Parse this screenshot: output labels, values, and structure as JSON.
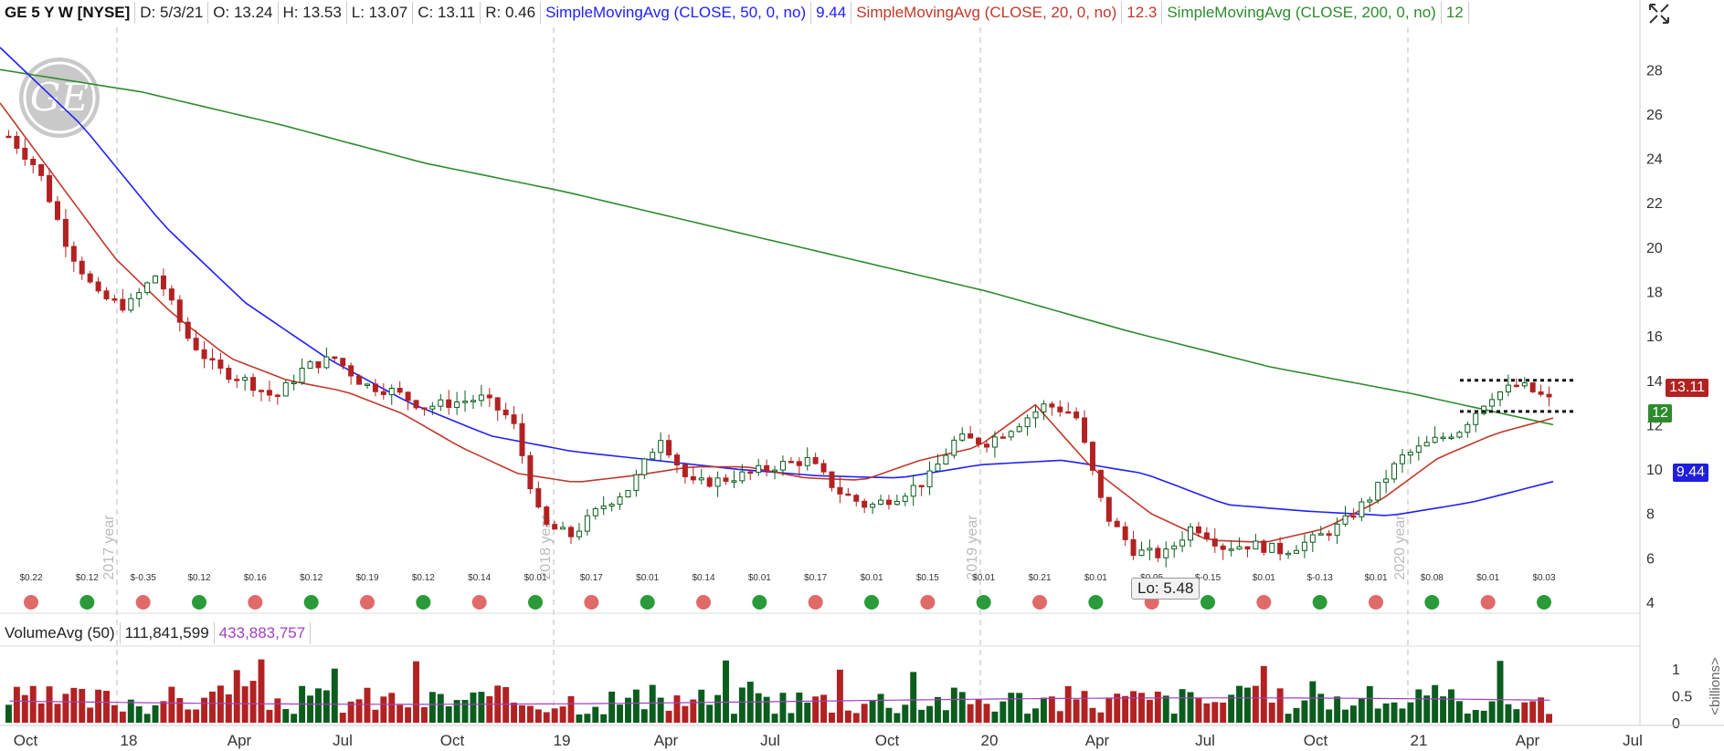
{
  "header": {
    "symbol": "GE 5 Y W [NYSE]",
    "date": "D: 5/3/21",
    "open": "O: 13.24",
    "high": "H: 13.53",
    "low": "L: 13.07",
    "close": "C: 13.11",
    "range": "R: 0.46",
    "sma50_label": "SimpleMovingAvg (CLOSE, 50, 0, no)",
    "sma50_value": "9.44",
    "sma20_label": "SimpleMovingAvg (CLOSE, 20, 0, no)",
    "sma20_value": "12.3",
    "sma200_label": "SimpleMovingAvg (CLOSE, 200, 0, no)",
    "sma200_value": "12"
  },
  "volume_header": {
    "label": "VolumeAvg (50)",
    "avg": "111,841,599",
    "vol": "433,883,757"
  },
  "tags": {
    "last_price": "13.11",
    "sma200": "12",
    "sma50": "9.44"
  },
  "low_callout": "Lo: 5.48",
  "colors": {
    "up": "#0b5d1e",
    "down": "#b22222",
    "sma50": "#2020ff",
    "sma20": "#c0392b",
    "sma200": "#2e8b2e",
    "volume_avg": "#a040c0",
    "last_price_tag": "#b22222",
    "sma200_tag": "#2e8b2e",
    "sma50_tag": "#1f1fdd"
  },
  "icons": [
    "ge-logo",
    "expand-icon",
    "dividend-icon",
    "earnings-icon"
  ],
  "chart_data": {
    "type": "candlestick",
    "y_range": [
      4,
      29
    ],
    "y_ticks": [
      4,
      6,
      8,
      10,
      12,
      14,
      16,
      18,
      20,
      22,
      24,
      26,
      28
    ],
    "x_ticks": [
      "Oct",
      "18",
      "Apr",
      "Jul",
      "Oct",
      "19",
      "Apr",
      "Jul",
      "Oct",
      "20",
      "Apr",
      "Jul",
      "Oct",
      "21",
      "Apr",
      "Jul"
    ],
    "year_labels": [
      "2017 year",
      "2018 year",
      "2019 year",
      "2020 year"
    ],
    "volume_ticks": [
      "1",
      "0.5",
      "0"
    ],
    "volume_unit": "<billions>",
    "close_anchors": [
      25.0,
      23.5,
      20.0,
      17.8,
      17.3,
      18.8,
      16.0,
      14.5,
      14.0,
      13.2,
      14.6,
      15.0,
      13.8,
      13.5,
      12.8,
      13.0,
      13.2,
      12.2,
      7.5,
      7.0,
      8.3,
      9.2,
      11.5,
      9.3,
      9.5,
      9.8,
      10.2,
      10.4,
      9.0,
      8.3,
      8.8,
      9.5,
      11.4,
      11.2,
      12.0,
      12.9,
      12.5,
      8.0,
      6.3,
      6.1,
      7.5,
      6.5,
      6.6,
      6.3,
      6.8,
      7.5,
      8.8,
      10.5,
      11.2,
      11.8,
      13.3,
      13.8,
      13.11
    ],
    "sma20_anchors": [
      26.5,
      23.0,
      19.5,
      17.0,
      15.0,
      14.0,
      13.5,
      12.5,
      11.0,
      9.8,
      9.4,
      9.7,
      10.1,
      10.1,
      9.6,
      9.5,
      10.4,
      11.0,
      12.9,
      10.0,
      8.0,
      6.8,
      6.7,
      7.3,
      8.6,
      10.5,
      11.6,
      12.3
    ],
    "sma50_anchors": [
      29.0,
      25.5,
      21.0,
      17.5,
      15.0,
      13.0,
      11.5,
      10.8,
      10.4,
      10.0,
      9.7,
      9.6,
      10.2,
      10.4,
      9.8,
      8.4,
      8.1,
      7.9,
      8.5,
      9.44
    ],
    "sma200_anchors": [
      28.0,
      27.0,
      25.5,
      23.8,
      22.5,
      21.0,
      19.5,
      18.0,
      16.2,
      14.6,
      13.4,
      12.0
    ],
    "consolidation_box": {
      "top": 14.0,
      "bottom": 12.6
    },
    "low": 5.48,
    "dividends": [
      "$0.22",
      "$0.12",
      "$-0.35",
      "$0.12",
      "$0.16",
      "$0.12",
      "$0.19",
      "$0.12",
      "$0.14",
      "$0.01",
      "$0.17",
      "$0.01",
      "$0.14",
      "$0.01",
      "$0.17",
      "$0.01",
      "$0.15",
      "$0.01",
      "$0.21",
      "$0.01",
      "$0.05",
      "$-0.15",
      "$0.01",
      "$-0.13",
      "$0.01",
      "$0.08",
      "$0.01",
      "$0.03"
    ]
  }
}
